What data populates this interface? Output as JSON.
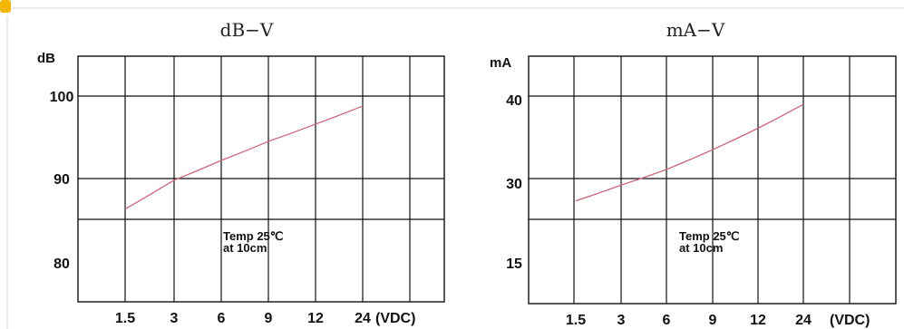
{
  "page": {
    "accent_color": "#f2b705"
  },
  "chart_data": [
    {
      "type": "line",
      "title": "dB−V",
      "ylabel": "dB",
      "x_unit_label": "(VDC)",
      "categories": [
        "1.5",
        "3",
        "6",
        "9",
        "12",
        "24"
      ],
      "y_tick_labels": [
        "100",
        "90",
        "80"
      ],
      "grid": true,
      "note": [
        "Temp 25℃",
        "at 10cm"
      ],
      "series": [
        {
          "color": "#c9687a",
          "x": [
            "1.5",
            "3",
            "6",
            "9",
            "12",
            "24"
          ],
          "values": [
            86.3,
            89.8,
            92.2,
            94.5,
            96.6,
            98.8
          ]
        }
      ]
    },
    {
      "type": "line",
      "title": "mA−V",
      "ylabel": "mA",
      "x_unit_label": "(VDC)",
      "categories": [
        "1.5",
        "3",
        "6",
        "9",
        "12",
        "24"
      ],
      "y_tick_labels": [
        "40",
        "30",
        "15"
      ],
      "grid": true,
      "note": [
        "Temp 25℃",
        "at 10cm"
      ],
      "series": [
        {
          "color": "#c9687a",
          "x": [
            "1.5",
            "3",
            "6",
            "9",
            "12",
            "24"
          ],
          "values": [
            27.3,
            29.2,
            31.1,
            33.5,
            36.1,
            39.0
          ]
        }
      ]
    }
  ]
}
